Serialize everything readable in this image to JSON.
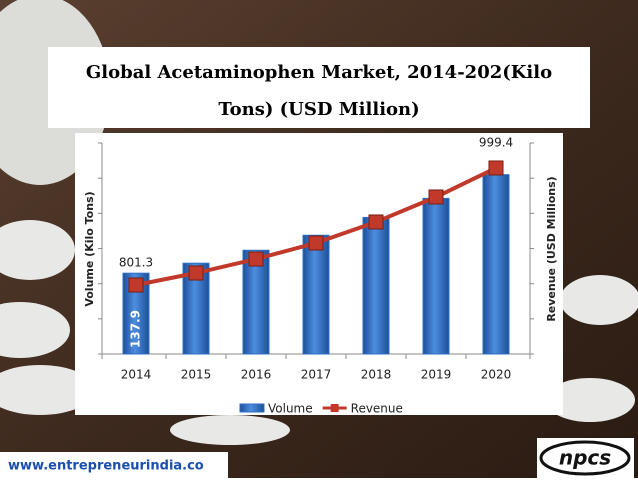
{
  "chart_data": {
    "type": "bar-line",
    "title": "Global Acetaminophen Market, 2014-202(Kilo",
    "title_line2": "Tons) (USD Million)",
    "categories": [
      "2014",
      "2015",
      "2016",
      "2017",
      "2018",
      "2019",
      "2020"
    ],
    "y_label": "Volume (Kilo Tons)",
    "y2_label": "Revenue (USD Millions)",
    "ylim": [
      0,
      360
    ],
    "y2lim": [
      684.5,
      1041.7
    ],
    "series": [
      {
        "name": "Volume",
        "type": "bar",
        "color": "#2e6fc4",
        "values": [
          137.9,
          154.9,
          177,
          202.6,
          233,
          265.5,
          306
        ],
        "value_labels": [
          "137.9",
          null,
          null,
          null,
          null,
          null,
          null
        ]
      },
      {
        "name": "Revenue",
        "type": "line",
        "axis": "y2",
        "color": "#c0392b",
        "values": [
          801.3,
          821.6,
          845.3,
          872.4,
          908,
          950.3,
          999.4
        ],
        "value_labels": [
          "801.3",
          null,
          null,
          null,
          null,
          null,
          "999.4"
        ]
      }
    ],
    "legend": "bottom"
  },
  "footer": {
    "website": "www.entrepreneurindia.co",
    "logo": "npcs"
  }
}
